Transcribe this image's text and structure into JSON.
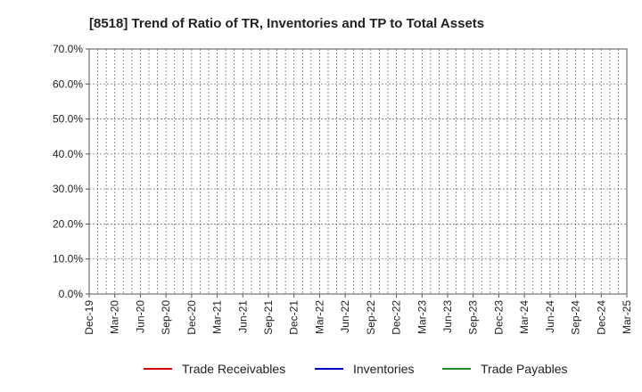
{
  "chart_data": {
    "type": "line",
    "title": "[8518]  Trend of Ratio of TR, Inventories and TP to Total Assets",
    "xlabel": "",
    "ylabel": "",
    "ylim": [
      0,
      70
    ],
    "y_ticks": [
      "0.0%",
      "10.0%",
      "20.0%",
      "30.0%",
      "40.0%",
      "50.0%",
      "60.0%",
      "70.0%"
    ],
    "x_tick_labels": [
      "Dec-19",
      "Mar-20",
      "Jun-20",
      "Sep-20",
      "Dec-20",
      "Mar-21",
      "Jun-21",
      "Sep-21",
      "Dec-21",
      "Mar-22",
      "Jun-22",
      "Sep-22",
      "Dec-22",
      "Mar-23",
      "Jun-23",
      "Sep-23",
      "Dec-23",
      "Mar-24",
      "Jun-24",
      "Sep-24",
      "Dec-24",
      "Mar-25"
    ],
    "x_range": [
      "2019-12",
      "2025-03"
    ],
    "grid": true,
    "legend_position": "bottom",
    "series": [
      {
        "name": "Trade Receivables",
        "color": "#dd0000",
        "values": []
      },
      {
        "name": "Inventories",
        "color": "#0000cc",
        "values": []
      },
      {
        "name": "Trade Payables",
        "color": "#228b22",
        "values": []
      }
    ]
  }
}
